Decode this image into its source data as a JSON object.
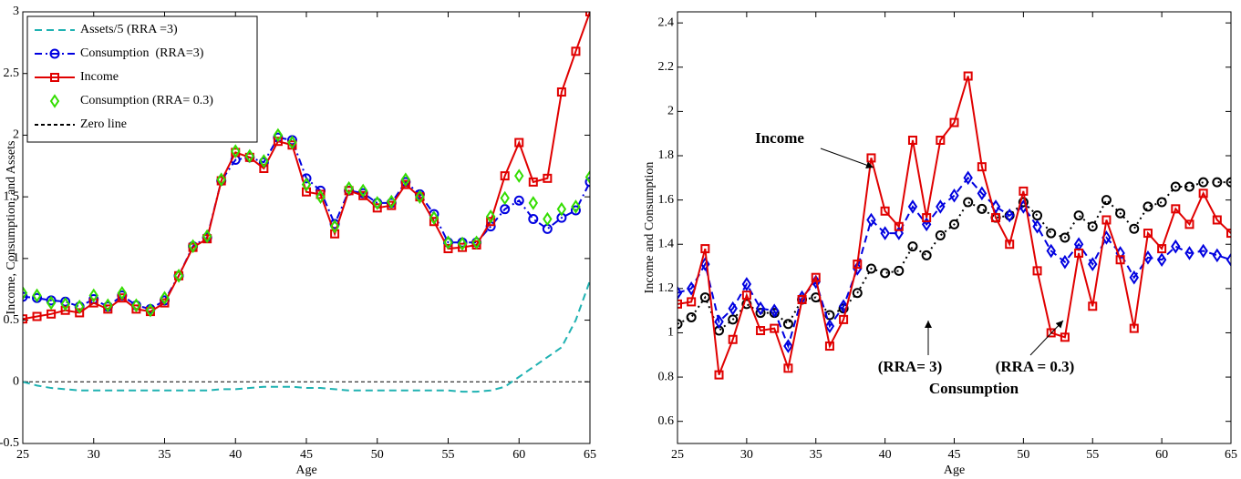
{
  "chart_data": [
    {
      "type": "line",
      "xlabel": "Age",
      "ylabel": "Income, Consumption, and Assets",
      "x": [
        25,
        26,
        27,
        28,
        29,
        30,
        31,
        32,
        33,
        34,
        35,
        36,
        37,
        38,
        39,
        40,
        41,
        42,
        43,
        44,
        45,
        46,
        47,
        48,
        49,
        50,
        51,
        52,
        53,
        54,
        55,
        56,
        57,
        58,
        59,
        60,
        61,
        62,
        63,
        64,
        65
      ],
      "xlim": [
        25,
        65
      ],
      "xticks": [
        25,
        30,
        35,
        40,
        45,
        50,
        55,
        60,
        65
      ],
      "ylim": [
        -0.5,
        3
      ],
      "yticks": [
        -0.5,
        0,
        0.5,
        1,
        1.5,
        2,
        2.5,
        3
      ],
      "legend": "upper left",
      "series": [
        {
          "name": "Assets/5 (RRA =3)",
          "color": "#20b2b2",
          "linestyle": "dashed",
          "marker": "none",
          "values": [
            0,
            -0.03,
            -0.05,
            -0.06,
            -0.07,
            -0.07,
            -0.07,
            -0.07,
            -0.07,
            -0.07,
            -0.07,
            -0.07,
            -0.07,
            -0.07,
            -0.06,
            -0.06,
            -0.05,
            -0.04,
            -0.04,
            -0.04,
            -0.05,
            -0.05,
            -0.06,
            -0.07,
            -0.07,
            -0.07,
            -0.07,
            -0.07,
            -0.07,
            -0.07,
            -0.07,
            -0.08,
            -0.08,
            -0.07,
            -0.04,
            0.04,
            0.12,
            0.2,
            0.28,
            0.5,
            0.82
          ]
        },
        {
          "name": "Consumption  (RRA=3)",
          "color": "#0000e0",
          "linestyle": "dashdot",
          "marker": "circle",
          "values": [
            0.69,
            0.68,
            0.66,
            0.65,
            0.61,
            0.67,
            0.61,
            0.7,
            0.62,
            0.59,
            0.66,
            0.86,
            1.1,
            1.17,
            1.63,
            1.8,
            1.82,
            1.78,
            1.98,
            1.96,
            1.65,
            1.55,
            1.28,
            1.55,
            1.53,
            1.45,
            1.45,
            1.62,
            1.52,
            1.36,
            1.13,
            1.13,
            1.13,
            1.26,
            1.4,
            1.47,
            1.32,
            1.24,
            1.33,
            1.39,
            1.62
          ]
        },
        {
          "name": "Income",
          "color": "#e00000",
          "linestyle": "solid",
          "marker": "square",
          "values": [
            0.51,
            0.53,
            0.55,
            0.58,
            0.56,
            0.64,
            0.59,
            0.68,
            0.59,
            0.57,
            0.64,
            0.86,
            1.09,
            1.16,
            1.63,
            1.86,
            1.82,
            1.73,
            1.95,
            1.92,
            1.54,
            1.52,
            1.2,
            1.55,
            1.51,
            1.41,
            1.43,
            1.6,
            1.5,
            1.3,
            1.08,
            1.09,
            1.11,
            1.3,
            1.67,
            1.94,
            1.62,
            1.65,
            2.35,
            2.68,
            3.0
          ]
        },
        {
          "name": "Consumption (RRA= 0.3)",
          "color": "#33dd00",
          "linestyle": "none",
          "marker": "diamond",
          "values": [
            0.72,
            0.7,
            0.64,
            0.63,
            0.61,
            0.7,
            0.62,
            0.72,
            0.62,
            0.58,
            0.68,
            0.86,
            1.1,
            1.18,
            1.64,
            1.87,
            1.83,
            1.79,
            2.0,
            1.94,
            1.6,
            1.5,
            1.26,
            1.57,
            1.55,
            1.45,
            1.46,
            1.64,
            1.5,
            1.33,
            1.13,
            1.12,
            1.13,
            1.34,
            1.49,
            1.67,
            1.45,
            1.32,
            1.4,
            1.42,
            1.66
          ]
        }
      ],
      "reference_lines": [
        {
          "name": "Zero line",
          "value": 0,
          "color": "#000000",
          "linestyle": "dashed"
        }
      ]
    },
    {
      "type": "line",
      "xlabel": "Age",
      "ylabel": "Income and Consumption",
      "x": [
        25,
        26,
        27,
        28,
        29,
        30,
        31,
        32,
        33,
        34,
        35,
        36,
        37,
        38,
        39,
        40,
        41,
        42,
        43,
        44,
        45,
        46,
        47,
        48,
        49,
        50,
        51,
        52,
        53,
        54,
        55,
        56,
        57,
        58,
        59,
        60,
        61,
        62,
        63,
        64,
        65
      ],
      "xlim": [
        25,
        65
      ],
      "xticks": [
        25,
        30,
        35,
        40,
        45,
        50,
        55,
        60,
        65
      ],
      "ylim": [
        0.5,
        2.45
      ],
      "yticks": [
        0.6,
        0.8,
        1,
        1.2,
        1.4,
        1.6,
        1.8,
        2,
        2.2,
        2.4
      ],
      "annotations": [
        "Income",
        "(RRA= 3)",
        "(RRA = 0.3)",
        "Consumption"
      ],
      "series": [
        {
          "color": "#000000",
          "linestyle": "dotted",
          "marker": "circle",
          "values": [
            1.04,
            1.07,
            1.16,
            1.01,
            1.06,
            1.13,
            1.09,
            1.09,
            1.04,
            1.15,
            1.16,
            1.08,
            1.11,
            1.18,
            1.29,
            1.27,
            1.28,
            1.39,
            1.35,
            1.44,
            1.49,
            1.59,
            1.56,
            1.52,
            1.53,
            1.59,
            1.53,
            1.45,
            1.43,
            1.53,
            1.48,
            1.6,
            1.54,
            1.47,
            1.57,
            1.59,
            1.66,
            1.66,
            1.68,
            1.68,
            1.68
          ]
        },
        {
          "color": "#0000e0",
          "linestyle": "dashed",
          "marker": "diamond",
          "values": [
            1.18,
            1.2,
            1.31,
            1.05,
            1.11,
            1.22,
            1.11,
            1.1,
            0.94,
            1.16,
            1.23,
            1.03,
            1.12,
            1.29,
            1.51,
            1.45,
            1.45,
            1.57,
            1.49,
            1.57,
            1.62,
            1.7,
            1.63,
            1.57,
            1.53,
            1.57,
            1.48,
            1.37,
            1.32,
            1.4,
            1.31,
            1.43,
            1.36,
            1.25,
            1.34,
            1.33,
            1.39,
            1.36,
            1.37,
            1.35,
            1.33
          ]
        },
        {
          "color": "#e00000",
          "linestyle": "solid",
          "marker": "square",
          "values": [
            1.13,
            1.14,
            1.38,
            0.81,
            0.97,
            1.17,
            1.01,
            1.02,
            0.84,
            1.15,
            1.25,
            0.94,
            1.06,
            1.31,
            1.79,
            1.55,
            1.48,
            1.87,
            1.52,
            1.87,
            1.95,
            2.16,
            1.75,
            1.52,
            1.4,
            1.64,
            1.28,
            1.0,
            0.98,
            1.36,
            1.12,
            1.51,
            1.33,
            1.02,
            1.45,
            1.38,
            1.56,
            1.49,
            1.63,
            1.51,
            1.45
          ]
        }
      ]
    }
  ]
}
